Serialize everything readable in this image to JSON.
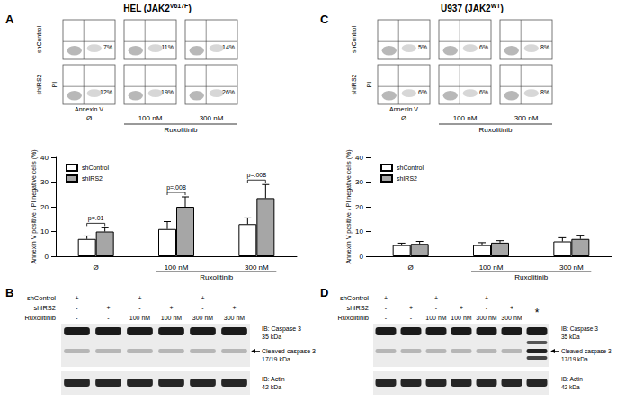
{
  "chart_data": [
    {
      "type": "bar",
      "categories": [
        "Ø",
        "100 nM",
        "300 nM"
      ],
      "y_label": "Annexin V positive / PI negative cells (%)",
      "ylim": [
        0,
        40
      ],
      "yticks": [
        0,
        10,
        20,
        30,
        40
      ],
      "grid": false,
      "legend": "top-left",
      "series": [
        {
          "name": "shControl",
          "color": "#ffffff",
          "values": [
            7,
            11,
            13
          ],
          "errors": [
            1.2,
            3,
            2.5
          ]
        },
        {
          "name": "shIRS2",
          "color": "#a6a6a6",
          "values": [
            10,
            20,
            23.5
          ],
          "errors": [
            1.5,
            4,
            5.5
          ]
        }
      ],
      "annotations": [
        {
          "text": "Ruxolitinib",
          "categories": [
            "100 nM",
            "300 nM"
          ]
        }
      ],
      "comparisons": [
        {
          "category": "Ø",
          "label": "p=.01"
        },
        {
          "category": "100 nM",
          "label": "p=.008"
        },
        {
          "category": "300 nM",
          "label": "p=.008"
        }
      ]
    },
    {
      "type": "bar",
      "categories": [
        "Ø",
        "100 nM",
        "300 nM"
      ],
      "y_label": "Annexin V positive / PI negative cells (%)",
      "ylim": [
        0,
        40
      ],
      "yticks": [
        0,
        10,
        20,
        30,
        40
      ],
      "grid": false,
      "legend": "top-left",
      "series": [
        {
          "name": "shControl",
          "color": "#ffffff",
          "values": [
            4.5,
            4.5,
            6
          ],
          "errors": [
            0.8,
            1,
            1.5
          ]
        },
        {
          "name": "shIRS2",
          "color": "#a6a6a6",
          "values": [
            5,
            5.5,
            7
          ],
          "errors": [
            1,
            0.8,
            1.5
          ]
        }
      ],
      "annotations": [
        {
          "text": "Ruxolitinib",
          "categories": [
            "100 nM",
            "300 nM"
          ]
        }
      ]
    }
  ],
  "flow_panels": [
    {
      "letter": "A",
      "title": "HEL (JAK2V617F)",
      "title_sup": "V617F",
      "rows": [
        "shControl",
        "shIRS2"
      ],
      "columns": [
        "Ø",
        "100 nM",
        "300 nM"
      ],
      "percent_labels": [
        [
          "7%",
          "11%",
          "14%"
        ],
        [
          "12%",
          "19%",
          "26%"
        ]
      ],
      "x_label": "Annexin V",
      "y_label": "PI",
      "group_label": "Ruxolitinib"
    },
    {
      "letter": "C",
      "title": "U937 (JAK2WT)",
      "title_sup": "WT",
      "rows": [
        "shControl",
        "shIRS2"
      ],
      "columns": [
        "Ø",
        "100 nM",
        "300 nM"
      ],
      "percent_labels": [
        [
          "5%",
          "6%",
          "8%"
        ],
        [
          "6%",
          "6%",
          "8%"
        ]
      ],
      "x_label": "Annexin V",
      "y_label": "PI",
      "group_label": "Ruxolitinib"
    }
  ],
  "blot_panels": [
    {
      "letter": "B",
      "rows": [
        {
          "label": "shControl",
          "lanes": [
            "+",
            "-",
            "+",
            "-",
            "+",
            "-"
          ]
        },
        {
          "label": "shIRS2",
          "lanes": [
            "-",
            "+",
            "-",
            "+",
            "-",
            "+"
          ]
        },
        {
          "label": "Ruxolitinib",
          "lanes": [
            "-",
            "-",
            "100 nM",
            "100 nM",
            "300 nM",
            "300 nM"
          ]
        }
      ],
      "labels": {
        "caspase": "IB: Caspase 3",
        "caspase_kda": "35 kDa",
        "cleaved": "Cleaved-caspase 3",
        "cleaved_kda": "17/19 kDa",
        "actin": "IB: Actin",
        "actin_kda": "42 kDa"
      }
    },
    {
      "letter": "D",
      "rows": [
        {
          "label": "shControl",
          "lanes": [
            "+",
            "-",
            "+",
            "-",
            "+",
            "-"
          ]
        },
        {
          "label": "shIRS2",
          "lanes": [
            "-",
            "+",
            "-",
            "+",
            "-",
            "+"
          ]
        },
        {
          "label": "Ruxolitinib",
          "lanes": [
            "-",
            "-",
            "100 nM",
            "100 nM",
            "300 nM",
            "300 nM"
          ]
        }
      ],
      "extra_lane": "*",
      "labels": {
        "caspase": "IB: Caspase 3",
        "caspase_kda": "35 kDa",
        "cleaved": "Cleaved-caspase 3",
        "cleaved_kda": "17/19 kDa",
        "actin": "IB: Actin",
        "actin_kda": "42 kDa"
      }
    }
  ]
}
